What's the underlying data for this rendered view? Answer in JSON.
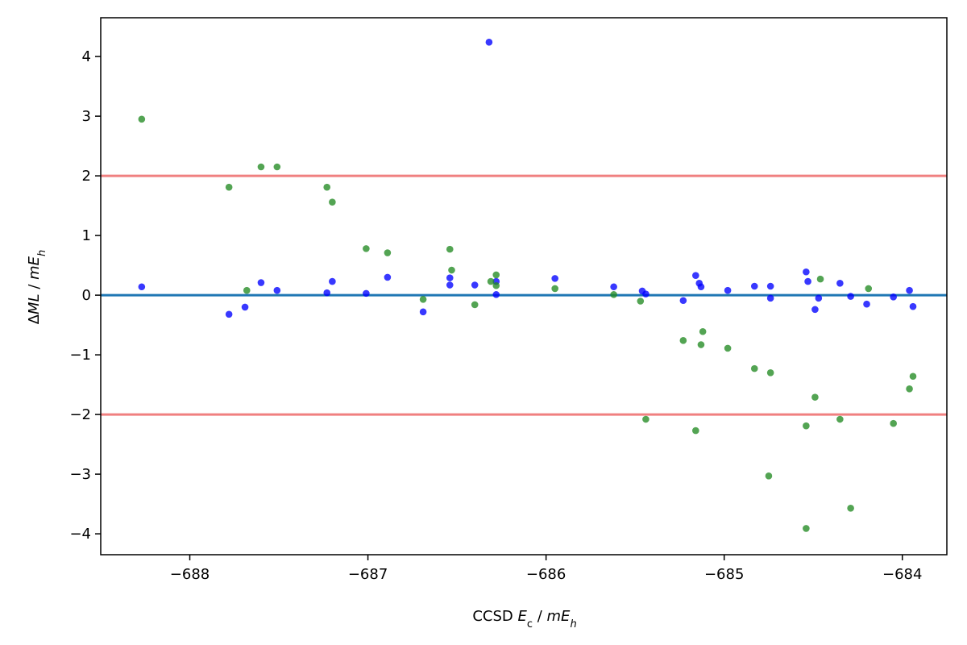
{
  "chart_data": {
    "type": "scatter",
    "title": "",
    "xlabel": {
      "main": "CCSD ",
      "italic1": "E",
      "sub1": "c",
      "rest": " / ",
      "italic2": "mE",
      "sub2": "h"
    },
    "ylabel": {
      "delta": "Δ",
      "italic1": "ML",
      "rest": " / ",
      "italic2": "mE",
      "sub2": "h"
    },
    "xlim": [
      -688.5,
      -683.75
    ],
    "ylim": [
      -4.35,
      4.65
    ],
    "xticks": [
      -688,
      -687,
      -686,
      -685,
      -684
    ],
    "xtick_labels": [
      "−688",
      "−687",
      "−686",
      "−685",
      "−684"
    ],
    "yticks": [
      -4,
      -3,
      -2,
      -1,
      0,
      1,
      2,
      3,
      4
    ],
    "ytick_labels": [
      "−4",
      "−3",
      "−2",
      "−1",
      "0",
      "1",
      "2",
      "3",
      "4"
    ],
    "grid": false,
    "reference_lines": [
      {
        "y": 2,
        "color": "#f08080"
      },
      {
        "y": -2,
        "color": "#f08080"
      },
      {
        "y": 0,
        "color": "#1f77b4"
      }
    ],
    "series": [
      {
        "color": "#0000ff",
        "points": [
          [
            -688.27,
            0.14
          ],
          [
            -687.78,
            -0.32
          ],
          [
            -687.69,
            -0.2
          ],
          [
            -687.6,
            0.21
          ],
          [
            -687.51,
            0.08
          ],
          [
            -687.23,
            0.04
          ],
          [
            -687.2,
            0.23
          ],
          [
            -687.01,
            0.03
          ],
          [
            -686.89,
            0.3
          ],
          [
            -686.69,
            -0.28
          ],
          [
            -686.54,
            0.29
          ],
          [
            -686.54,
            0.17
          ],
          [
            -686.4,
            0.17
          ],
          [
            -686.32,
            4.24
          ],
          [
            -686.28,
            0.23
          ],
          [
            -686.28,
            0.01
          ],
          [
            -685.95,
            0.28
          ],
          [
            -685.62,
            0.14
          ],
          [
            -685.46,
            0.07
          ],
          [
            -685.44,
            0.02
          ],
          [
            -685.23,
            -0.09
          ],
          [
            -685.16,
            0.33
          ],
          [
            -685.14,
            0.2
          ],
          [
            -685.13,
            0.14
          ],
          [
            -684.98,
            0.08
          ],
          [
            -684.83,
            0.15
          ],
          [
            -684.74,
            0.15
          ],
          [
            -684.74,
            -0.05
          ],
          [
            -684.54,
            0.39
          ],
          [
            -684.53,
            0.23
          ],
          [
            -684.49,
            -0.24
          ],
          [
            -684.47,
            -0.05
          ],
          [
            -684.35,
            0.2
          ],
          [
            -684.29,
            -0.02
          ],
          [
            -684.2,
            -0.15
          ],
          [
            -684.05,
            -0.03
          ],
          [
            -683.96,
            0.08
          ],
          [
            -683.94,
            -0.19
          ]
        ]
      },
      {
        "color": "#228b22",
        "points": [
          [
            -688.27,
            2.95
          ],
          [
            -687.78,
            1.81
          ],
          [
            -687.68,
            0.08
          ],
          [
            -687.6,
            2.15
          ],
          [
            -687.51,
            2.15
          ],
          [
            -687.23,
            1.81
          ],
          [
            -687.2,
            1.56
          ],
          [
            -687.01,
            0.78
          ],
          [
            -686.89,
            0.71
          ],
          [
            -686.69,
            -0.07
          ],
          [
            -686.54,
            0.77
          ],
          [
            -686.53,
            0.42
          ],
          [
            -686.4,
            -0.16
          ],
          [
            -686.31,
            0.23
          ],
          [
            -686.28,
            0.34
          ],
          [
            -686.28,
            0.16
          ],
          [
            -685.95,
            0.11
          ],
          [
            -685.62,
            0.01
          ],
          [
            -685.47,
            -0.1
          ],
          [
            -685.44,
            -2.08
          ],
          [
            -685.23,
            -0.76
          ],
          [
            -685.16,
            -2.27
          ],
          [
            -685.13,
            -0.83
          ],
          [
            -685.12,
            -0.61
          ],
          [
            -684.98,
            -0.89
          ],
          [
            -684.83,
            -1.23
          ],
          [
            -684.74,
            -1.3
          ],
          [
            -684.75,
            -3.03
          ],
          [
            -684.54,
            -3.91
          ],
          [
            -684.54,
            -2.19
          ],
          [
            -684.49,
            -1.71
          ],
          [
            -684.46,
            0.27
          ],
          [
            -684.35,
            -2.08
          ],
          [
            -684.29,
            -3.57
          ],
          [
            -684.19,
            0.11
          ],
          [
            -684.05,
            -2.15
          ],
          [
            -683.96,
            -1.57
          ],
          [
            -683.94,
            -1.36
          ]
        ]
      }
    ]
  }
}
